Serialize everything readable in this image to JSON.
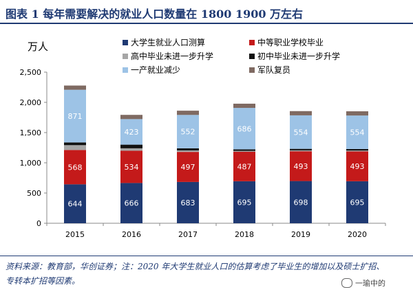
{
  "title": "图表 1   每年需要解决的就业人口数量在 1800 1900 万左右",
  "source": "资料来源：教育部，华创证券；注：2020 年大学生就业人口的估算考虑了毕业生的增加以及硕士扩招、专转本扩招等因素。",
  "watermark": "一瑜中的",
  "chart_data": {
    "type": "bar",
    "stacked": true,
    "ylabel": "万人",
    "ylim": [
      0,
      2500
    ],
    "yticks": [
      0,
      500,
      1000,
      1500,
      2000,
      2500
    ],
    "ytick_labels": [
      "0",
      "500",
      "1,000",
      "1,500",
      "2,000",
      "2,500"
    ],
    "grid": false,
    "legend_position": "top",
    "categories": [
      "2015",
      "2016",
      "2017",
      "2018",
      "2019",
      "2020"
    ],
    "series": [
      {
        "name": "大学生就业人口测算",
        "color": "#1f3a73",
        "label_color": "#ffffff",
        "values": [
          644,
          666,
          683,
          695,
          698,
          695
        ],
        "labels": [
          "644",
          "666",
          "683",
          "695",
          "698",
          "695"
        ]
      },
      {
        "name": "中等职业学校毕业",
        "color": "#c41a1a",
        "label_color": "#ffffff",
        "values": [
          568,
          534,
          497,
          487,
          493,
          493
        ],
        "labels": [
          "568",
          "534",
          "497",
          "487",
          "493",
          "493"
        ]
      },
      {
        "name": "高中毕业未进一步升学",
        "color": "#a6a6a6",
        "label_color": "#ffffff",
        "values": [
          80,
          40,
          25,
          15,
          15,
          15
        ],
        "labels": []
      },
      {
        "name": "初中毕业未进一步升学",
        "color": "#111111",
        "label_color": "#ffffff",
        "values": [
          45,
          60,
          35,
          25,
          25,
          25
        ],
        "labels": []
      },
      {
        "name": "一产就业减少",
        "color": "#9dc3e6",
        "label_color": "#ffffff",
        "values": [
          871,
          423,
          552,
          686,
          554,
          554
        ],
        "labels": [
          "871",
          "423",
          "552",
          "686",
          "554",
          "554"
        ]
      },
      {
        "name": "军队复员",
        "color": "#7f6a62",
        "label_color": "#ffffff",
        "values": [
          70,
          70,
          70,
          70,
          70,
          70
        ],
        "labels": []
      }
    ]
  }
}
